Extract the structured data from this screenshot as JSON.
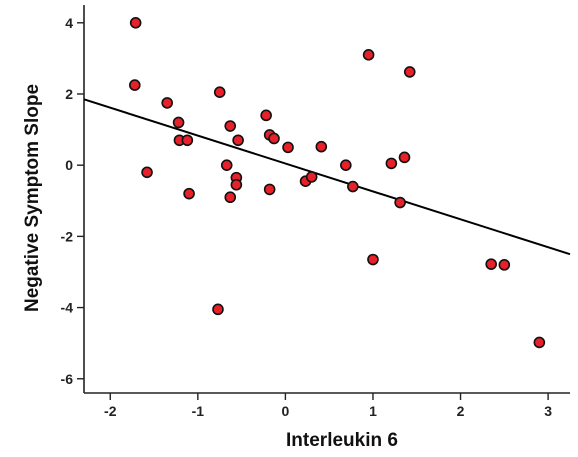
{
  "chart_data": {
    "type": "scatter",
    "title": "",
    "xlabel": "Interleukin 6",
    "ylabel": "Negative Symptom Slope",
    "xlim": [
      -2.3,
      3.25
    ],
    "ylim": [
      -6.4,
      4.5
    ],
    "xticks": [
      -2,
      -1,
      0,
      1,
      2,
      3
    ],
    "yticks": [
      -6,
      -4,
      -2,
      0,
      2,
      4
    ],
    "grid": false,
    "marker_color": "#e8202a",
    "marker_edge_color": "#111111",
    "line_color": "#000000",
    "regression_line": {
      "x": [
        -2.3,
        3.25
      ],
      "y": [
        1.85,
        -2.5
      ]
    },
    "points": [
      {
        "x": -1.71,
        "y": 4.0
      },
      {
        "x": -1.72,
        "y": 2.25
      },
      {
        "x": -1.58,
        "y": -0.2
      },
      {
        "x": -1.35,
        "y": 1.75
      },
      {
        "x": -1.22,
        "y": 1.2
      },
      {
        "x": -1.21,
        "y": 0.7
      },
      {
        "x": -1.12,
        "y": 0.7
      },
      {
        "x": -1.1,
        "y": -0.8
      },
      {
        "x": -0.75,
        "y": 2.05
      },
      {
        "x": -0.67,
        "y": 0.0
      },
      {
        "x": -0.63,
        "y": 1.1
      },
      {
        "x": -0.63,
        "y": -0.9
      },
      {
        "x": -0.56,
        "y": -0.35
      },
      {
        "x": -0.56,
        "y": -0.55
      },
      {
        "x": -0.54,
        "y": 0.7
      },
      {
        "x": -0.77,
        "y": -4.05
      },
      {
        "x": -0.22,
        "y": 1.4
      },
      {
        "x": -0.18,
        "y": 0.85
      },
      {
        "x": -0.13,
        "y": 0.75
      },
      {
        "x": -0.18,
        "y": -0.68
      },
      {
        "x": 0.03,
        "y": 0.5
      },
      {
        "x": 0.23,
        "y": -0.45
      },
      {
        "x": 0.3,
        "y": -0.33
      },
      {
        "x": 0.41,
        "y": 0.52
      },
      {
        "x": 0.69,
        "y": 0.0
      },
      {
        "x": 0.77,
        "y": -0.6
      },
      {
        "x": 0.95,
        "y": 3.1
      },
      {
        "x": 1.0,
        "y": -2.65
      },
      {
        "x": 1.21,
        "y": 0.05
      },
      {
        "x": 1.31,
        "y": -1.05
      },
      {
        "x": 1.36,
        "y": 0.22
      },
      {
        "x": 1.42,
        "y": 2.62
      },
      {
        "x": 2.35,
        "y": -2.78
      },
      {
        "x": 2.5,
        "y": -2.8
      },
      {
        "x": 2.9,
        "y": -4.98
      }
    ]
  }
}
